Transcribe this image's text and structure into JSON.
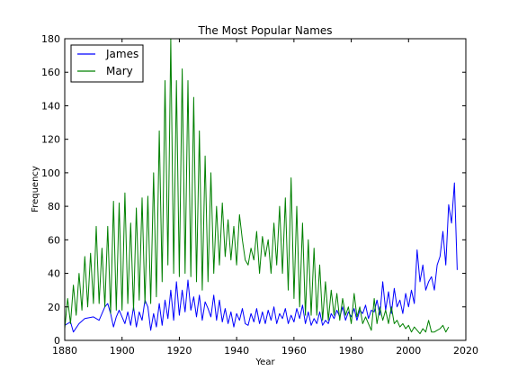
{
  "chart_data": {
    "type": "line",
    "title": "The Most Popular Names",
    "xlabel": "Year",
    "ylabel": "Frequency",
    "xlim": [
      1880,
      2020
    ],
    "ylim": [
      0,
      180
    ],
    "xticks": [
      1880,
      1900,
      1920,
      1940,
      1960,
      1980,
      2000,
      2020
    ],
    "yticks": [
      0,
      20,
      40,
      60,
      80,
      100,
      120,
      140,
      160,
      180
    ],
    "xtick_labels": [
      "1880",
      "1900",
      "1920",
      "1940",
      "1960",
      "1980",
      "2000",
      "2020"
    ],
    "ytick_labels": [
      "0",
      "20",
      "40",
      "60",
      "80",
      "100",
      "120",
      "140",
      "160",
      "180"
    ],
    "legend_position": "top-left",
    "grid": false,
    "series": [
      {
        "name": "James",
        "color": "#0000ff",
        "points": [
          [
            1880,
            9
          ],
          [
            1882,
            11
          ],
          [
            1883,
            5
          ],
          [
            1885,
            10
          ],
          [
            1887,
            13
          ],
          [
            1890,
            14
          ],
          [
            1892,
            12
          ],
          [
            1894,
            20
          ],
          [
            1895,
            22
          ],
          [
            1896,
            16
          ],
          [
            1897,
            8
          ],
          [
            1898,
            14
          ],
          [
            1899,
            18
          ],
          [
            1900,
            14
          ],
          [
            1901,
            10
          ],
          [
            1902,
            17
          ],
          [
            1903,
            9
          ],
          [
            1904,
            20
          ],
          [
            1905,
            8
          ],
          [
            1906,
            17
          ],
          [
            1907,
            12
          ],
          [
            1908,
            24
          ],
          [
            1909,
            20
          ],
          [
            1910,
            6
          ],
          [
            1911,
            16
          ],
          [
            1912,
            8
          ],
          [
            1913,
            22
          ],
          [
            1914,
            9
          ],
          [
            1915,
            24
          ],
          [
            1916,
            13
          ],
          [
            1917,
            30
          ],
          [
            1918,
            12
          ],
          [
            1919,
            35
          ],
          [
            1920,
            15
          ],
          [
            1921,
            30
          ],
          [
            1922,
            17
          ],
          [
            1923,
            36
          ],
          [
            1924,
            18
          ],
          [
            1925,
            26
          ],
          [
            1926,
            14
          ],
          [
            1927,
            27
          ],
          [
            1928,
            12
          ],
          [
            1929,
            23
          ],
          [
            1930,
            19
          ],
          [
            1931,
            14
          ],
          [
            1932,
            27
          ],
          [
            1933,
            12
          ],
          [
            1934,
            24
          ],
          [
            1935,
            11
          ],
          [
            1936,
            19
          ],
          [
            1937,
            10
          ],
          [
            1938,
            17
          ],
          [
            1939,
            8
          ],
          [
            1940,
            16
          ],
          [
            1941,
            12
          ],
          [
            1942,
            19
          ],
          [
            1943,
            10
          ],
          [
            1944,
            9
          ],
          [
            1945,
            16
          ],
          [
            1946,
            11
          ],
          [
            1947,
            19
          ],
          [
            1948,
            10
          ],
          [
            1949,
            17
          ],
          [
            1950,
            10
          ],
          [
            1951,
            18
          ],
          [
            1952,
            12
          ],
          [
            1953,
            20
          ],
          [
            1954,
            10
          ],
          [
            1955,
            16
          ],
          [
            1956,
            13
          ],
          [
            1957,
            19
          ],
          [
            1958,
            10
          ],
          [
            1959,
            15
          ],
          [
            1960,
            11
          ],
          [
            1961,
            19
          ],
          [
            1962,
            13
          ],
          [
            1963,
            21
          ],
          [
            1964,
            10
          ],
          [
            1965,
            17
          ],
          [
            1966,
            9
          ],
          [
            1967,
            13
          ],
          [
            1968,
            10
          ],
          [
            1969,
            17
          ],
          [
            1970,
            9
          ],
          [
            1971,
            12
          ],
          [
            1972,
            10
          ],
          [
            1973,
            16
          ],
          [
            1974,
            13
          ],
          [
            1975,
            18
          ],
          [
            1976,
            14
          ],
          [
            1977,
            20
          ],
          [
            1978,
            12
          ],
          [
            1979,
            17
          ],
          [
            1980,
            14
          ],
          [
            1981,
            19
          ],
          [
            1982,
            12
          ],
          [
            1983,
            18
          ],
          [
            1984,
            16
          ],
          [
            1985,
            21
          ],
          [
            1986,
            13
          ],
          [
            1987,
            18
          ],
          [
            1988,
            17
          ],
          [
            1989,
            24
          ],
          [
            1990,
            15
          ],
          [
            1991,
            35
          ],
          [
            1992,
            18
          ],
          [
            1993,
            29
          ],
          [
            1994,
            16
          ],
          [
            1995,
            31
          ],
          [
            1996,
            20
          ],
          [
            1997,
            24
          ],
          [
            1998,
            16
          ],
          [
            1999,
            28
          ],
          [
            2000,
            20
          ],
          [
            2001,
            30
          ],
          [
            2002,
            22
          ],
          [
            2003,
            54
          ],
          [
            2004,
            35
          ],
          [
            2005,
            45
          ],
          [
            2006,
            30
          ],
          [
            2007,
            35
          ],
          [
            2008,
            38
          ],
          [
            2009,
            30
          ],
          [
            2010,
            45
          ],
          [
            2011,
            50
          ],
          [
            2012,
            65
          ],
          [
            2013,
            45
          ],
          [
            2014,
            81
          ],
          [
            2015,
            70
          ],
          [
            2016,
            94
          ],
          [
            2017,
            42
          ]
        ]
      },
      {
        "name": "Mary",
        "color": "#008000",
        "points": [
          [
            1880,
            7
          ],
          [
            1881,
            25
          ],
          [
            1882,
            10
          ],
          [
            1883,
            33
          ],
          [
            1884,
            15
          ],
          [
            1885,
            40
          ],
          [
            1886,
            18
          ],
          [
            1887,
            50
          ],
          [
            1888,
            20
          ],
          [
            1889,
            52
          ],
          [
            1890,
            22
          ],
          [
            1891,
            68
          ],
          [
            1892,
            22
          ],
          [
            1893,
            55
          ],
          [
            1894,
            20
          ],
          [
            1895,
            68
          ],
          [
            1896,
            16
          ],
          [
            1897,
            83
          ],
          [
            1898,
            18
          ],
          [
            1899,
            82
          ],
          [
            1900,
            18
          ],
          [
            1901,
            88
          ],
          [
            1902,
            22
          ],
          [
            1903,
            70
          ],
          [
            1904,
            18
          ],
          [
            1905,
            79
          ],
          [
            1906,
            24
          ],
          [
            1907,
            85
          ],
          [
            1908,
            22
          ],
          [
            1909,
            86
          ],
          [
            1910,
            22
          ],
          [
            1911,
            100
          ],
          [
            1912,
            26
          ],
          [
            1913,
            125
          ],
          [
            1914,
            35
          ],
          [
            1915,
            155
          ],
          [
            1916,
            45
          ],
          [
            1917,
            180
          ],
          [
            1918,
            40
          ],
          [
            1919,
            155
          ],
          [
            1920,
            38
          ],
          [
            1921,
            162
          ],
          [
            1922,
            40
          ],
          [
            1923,
            155
          ],
          [
            1924,
            38
          ],
          [
            1925,
            145
          ],
          [
            1926,
            35
          ],
          [
            1927,
            125
          ],
          [
            1928,
            30
          ],
          [
            1929,
            110
          ],
          [
            1930,
            35
          ],
          [
            1931,
            100
          ],
          [
            1932,
            40
          ],
          [
            1933,
            80
          ],
          [
            1934,
            45
          ],
          [
            1935,
            82
          ],
          [
            1936,
            50
          ],
          [
            1937,
            72
          ],
          [
            1938,
            48
          ],
          [
            1939,
            68
          ],
          [
            1940,
            45
          ],
          [
            1941,
            75
          ],
          [
            1942,
            60
          ],
          [
            1943,
            48
          ],
          [
            1944,
            45
          ],
          [
            1945,
            55
          ],
          [
            1946,
            48
          ],
          [
            1947,
            65
          ],
          [
            1948,
            40
          ],
          [
            1949,
            62
          ],
          [
            1950,
            50
          ],
          [
            1951,
            60
          ],
          [
            1952,
            40
          ],
          [
            1953,
            70
          ],
          [
            1954,
            45
          ],
          [
            1955,
            80
          ],
          [
            1956,
            40
          ],
          [
            1957,
            85
          ],
          [
            1958,
            30
          ],
          [
            1959,
            97
          ],
          [
            1960,
            25
          ],
          [
            1961,
            80
          ],
          [
            1962,
            20
          ],
          [
            1963,
            70
          ],
          [
            1964,
            15
          ],
          [
            1965,
            60
          ],
          [
            1966,
            15
          ],
          [
            1967,
            55
          ],
          [
            1968,
            15
          ],
          [
            1969,
            45
          ],
          [
            1970,
            12
          ],
          [
            1971,
            35
          ],
          [
            1972,
            12
          ],
          [
            1973,
            30
          ],
          [
            1974,
            15
          ],
          [
            1975,
            28
          ],
          [
            1976,
            12
          ],
          [
            1977,
            25
          ],
          [
            1978,
            15
          ],
          [
            1979,
            20
          ],
          [
            1980,
            10
          ],
          [
            1981,
            28
          ],
          [
            1982,
            14
          ],
          [
            1983,
            20
          ],
          [
            1984,
            10
          ],
          [
            1985,
            14
          ],
          [
            1986,
            10
          ],
          [
            1987,
            6
          ],
          [
            1988,
            25
          ],
          [
            1989,
            10
          ],
          [
            1990,
            20
          ],
          [
            1991,
            12
          ],
          [
            1992,
            18
          ],
          [
            1993,
            10
          ],
          [
            1994,
            20
          ],
          [
            1995,
            10
          ],
          [
            1996,
            12
          ],
          [
            1997,
            8
          ],
          [
            1998,
            10
          ],
          [
            1999,
            7
          ],
          [
            2000,
            9
          ],
          [
            2001,
            5
          ],
          [
            2002,
            8
          ],
          [
            2003,
            6
          ],
          [
            2004,
            4
          ],
          [
            2005,
            7
          ],
          [
            2006,
            5
          ],
          [
            2007,
            12
          ],
          [
            2008,
            5
          ],
          [
            2009,
            5
          ],
          [
            2010,
            6
          ],
          [
            2011,
            7
          ],
          [
            2012,
            9
          ],
          [
            2013,
            5
          ],
          [
            2014,
            8
          ]
        ]
      }
    ]
  }
}
